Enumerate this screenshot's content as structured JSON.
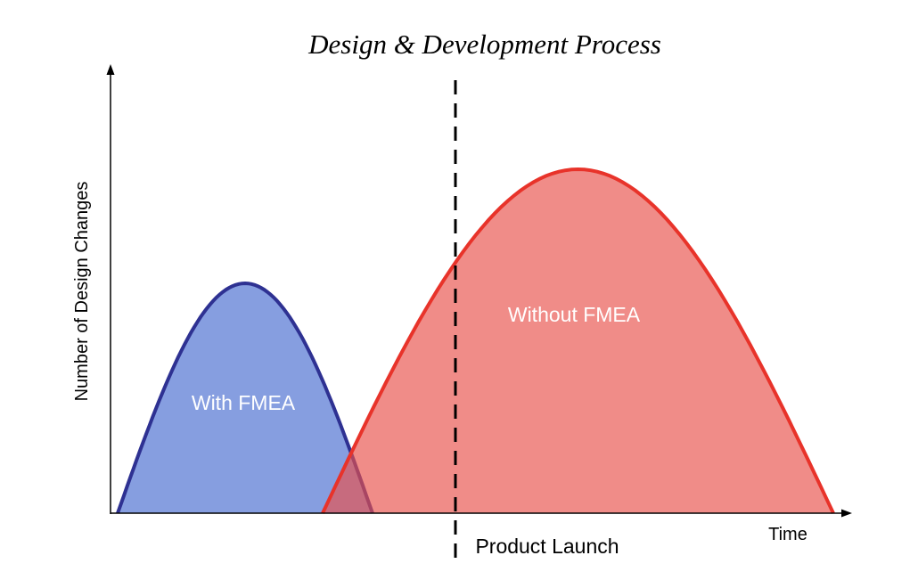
{
  "title": "Design & Development Process",
  "y_axis_label": "Number of Design Changes",
  "x_axis_label": "Time",
  "marker_label": "Product Launch",
  "curves": [
    {
      "label": "With FMEA",
      "fill": "#869ee0",
      "stroke": "#2e3192"
    },
    {
      "label": "Without FMEA",
      "fill": "#e8504a",
      "stroke": "#e8332a"
    }
  ]
}
